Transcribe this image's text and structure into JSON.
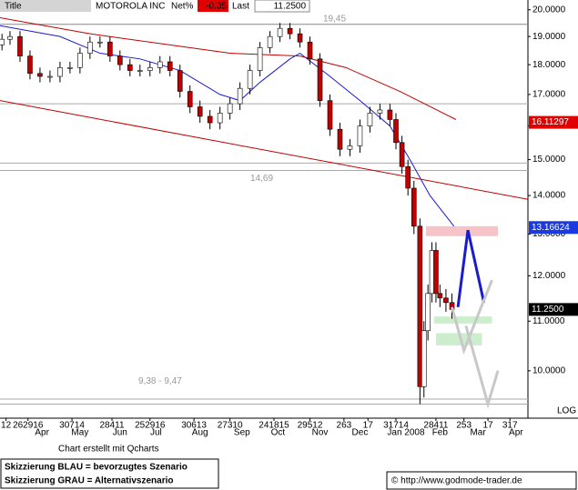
{
  "header": {
    "title": "Title",
    "symbol": "MOTOROLA INC",
    "net_label": "Net%",
    "net_value": "-0.35",
    "last_label": "Last",
    "last_value": "11.2500"
  },
  "chart_data": {
    "type": "candlestick",
    "x": [
      1,
      5,
      10,
      15,
      20,
      25,
      30,
      35,
      40,
      45,
      50,
      55,
      60,
      65,
      70,
      75,
      80,
      85,
      90,
      95,
      100,
      105,
      110,
      115,
      120,
      125,
      130,
      135,
      140,
      145,
      150,
      155,
      160,
      165,
      170,
      175,
      180,
      185,
      190,
      195,
      198,
      201,
      204,
      207,
      210,
      212,
      214,
      216,
      218,
      220,
      223,
      226
    ],
    "open": [
      18.7,
      18.9,
      19.0,
      18.3,
      17.7,
      17.6,
      17.6,
      17.9,
      17.9,
      18.4,
      18.8,
      18.8,
      18.3,
      18.0,
      17.8,
      17.8,
      17.9,
      18.1,
      17.8,
      17.1,
      16.6,
      16.3,
      16.1,
      16.4,
      16.7,
      17.2,
      17.8,
      18.6,
      19.0,
      19.3,
      19.1,
      18.8,
      18.2,
      16.8,
      15.9,
      15.3,
      15.4,
      16.0,
      16.4,
      16.5,
      16.2,
      15.5,
      14.8,
      14.2,
      13.2,
      9.7,
      10.8,
      11.6,
      12.6,
      11.6,
      11.5,
      11.4
    ],
    "high": [
      19.1,
      19.2,
      19.2,
      18.5,
      17.9,
      17.8,
      18.1,
      18.1,
      18.6,
      19.0,
      19.0,
      19.0,
      18.5,
      18.2,
      18.0,
      18.1,
      18.3,
      18.3,
      18.0,
      17.3,
      16.8,
      16.5,
      16.6,
      16.9,
      17.4,
      18.0,
      18.8,
      19.2,
      19.5,
      19.5,
      19.3,
      19.0,
      18.4,
      17.0,
      16.1,
      15.6,
      16.2,
      16.6,
      16.7,
      16.7,
      16.4,
      15.7,
      15.0,
      14.4,
      13.4,
      11.0,
      11.8,
      12.8,
      12.8,
      11.8,
      11.7,
      11.6
    ],
    "low": [
      18.5,
      18.7,
      18.1,
      17.5,
      17.4,
      17.4,
      17.4,
      17.7,
      17.7,
      18.2,
      18.6,
      18.1,
      17.8,
      17.6,
      17.6,
      17.6,
      17.7,
      17.6,
      16.9,
      16.4,
      16.1,
      15.9,
      15.9,
      16.2,
      16.5,
      17.0,
      17.6,
      18.4,
      18.8,
      18.9,
      18.6,
      18.0,
      16.6,
      15.7,
      15.1,
      15.1,
      15.2,
      15.8,
      16.2,
      16.0,
      15.3,
      14.6,
      14.0,
      13.0,
      9.38,
      9.5,
      10.6,
      11.4,
      11.4,
      11.3,
      11.2,
      11.05
    ],
    "close": [
      18.9,
      19.0,
      18.3,
      17.7,
      17.6,
      17.6,
      17.9,
      17.9,
      18.4,
      18.8,
      18.8,
      18.3,
      18.0,
      17.8,
      17.8,
      17.9,
      18.1,
      17.8,
      17.1,
      16.6,
      16.3,
      16.1,
      16.4,
      16.7,
      17.2,
      17.8,
      18.6,
      19.0,
      19.3,
      19.1,
      18.8,
      18.2,
      16.8,
      15.9,
      15.3,
      15.4,
      16.0,
      16.4,
      16.5,
      16.2,
      15.5,
      14.8,
      14.2,
      13.2,
      9.7,
      10.8,
      11.6,
      12.6,
      11.6,
      11.5,
      11.4,
      11.25
    ],
    "up_color": "#ffffff",
    "down_color": "#c00000",
    "lines": [
      {
        "color": "#1a1ad0",
        "x": [
          0,
          30,
          50,
          70,
          90,
          110,
          120,
          130,
          145,
          150,
          165,
          180,
          195,
          205,
          215,
          227
        ],
        "values": [
          19.4,
          19.0,
          18.4,
          18.2,
          17.8,
          17.0,
          16.8,
          17.4,
          18.2,
          18.4,
          17.6,
          16.8,
          16.0,
          15.0,
          14.0,
          13.2
        ]
      },
      {
        "color": "#c00000",
        "x": [
          0,
          45,
          115,
          150,
          173,
          200,
          228
        ],
        "values": [
          19.7,
          19.1,
          18.4,
          18.3,
          17.9,
          17.1,
          16.2
        ]
      },
      {
        "color": "#c00000",
        "x": [
          0,
          264
        ],
        "values": [
          16.8,
          13.9
        ]
      }
    ],
    "levels": [
      {
        "value": 19.45,
        "label": "19,45"
      },
      {
        "value": 14.69,
        "label": "14,69"
      },
      {
        "values": [
          9.38,
          9.47
        ],
        "label": "9,38 - 9,47"
      },
      {
        "value": 16.7
      },
      {
        "value": 14.9
      }
    ],
    "zones": [
      {
        "color": "#f6c4c8",
        "x": [
          213,
          249
        ],
        "range": [
          12.95,
          13.2
        ]
      },
      {
        "color": "#cdeecd",
        "x": [
          217,
          246
        ],
        "range": [
          10.95,
          11.1
        ]
      },
      {
        "color": "#cdeecd",
        "x": [
          218,
          241
        ],
        "range": [
          10.5,
          10.75
        ]
      }
    ],
    "scenarios": [
      {
        "color": "#1a1ad0",
        "x": [
          229,
          234,
          242
        ],
        "values": [
          11.3,
          13.1,
          11.4
        ]
      },
      {
        "color": "#c8c8c8",
        "x": [
          226,
          232,
          246
        ],
        "values": [
          11.3,
          10.4,
          11.9
        ]
      },
      {
        "color": "#c8c8c8",
        "x": [
          233,
          244,
          249
        ],
        "values": [
          10.9,
          9.38,
          10.0
        ]
      }
    ],
    "price_tags": [
      {
        "value": 16.11297,
        "color": "#e00000"
      },
      {
        "value": 13.16624,
        "color": "#1a3ae0"
      },
      {
        "value": {
          "value": 11.25,
          "label": "11.2500"
        },
        "color": "#000000"
      }
    ],
    "xlim": [
      0,
      264
    ],
    "ylim": [
      9.13,
      20.38
    ],
    "log_scale": true,
    "scale_label": "LOG",
    "yticks": [
      {
        "value": 10,
        "label": "10.0000"
      },
      {
        "value": 11,
        "label": "11.0000"
      },
      {
        "value": 12,
        "label": "12.0000"
      },
      {
        "value": 13,
        "label": "13.0000"
      },
      {
        "value": 14,
        "label": "14.0000"
      },
      {
        "value": 15,
        "label": "15.0000"
      },
      {
        "value": 16,
        "label": "16.0000"
      },
      {
        "value": 17,
        "label": "17.0000"
      },
      {
        "value": 18,
        "label": "18.0000"
      },
      {
        "value": 19,
        "label": "19.0000"
      },
      {
        "value": 20,
        "label": "20.0000"
      }
    ],
    "xticks": [
      {
        "value": 3,
        "label": "12"
      },
      {
        "value": 14,
        "label": "262916"
      },
      {
        "value": 36,
        "label": "30714"
      },
      {
        "value": 56,
        "label": "28411"
      },
      {
        "value": 75,
        "label": "252916"
      },
      {
        "value": 97,
        "label": "30613"
      },
      {
        "value": 115,
        "label": "27310"
      },
      {
        "value": 137,
        "label": "241815"
      },
      {
        "value": 155,
        "label": "29512"
      },
      {
        "value": 172,
        "label": "263"
      },
      {
        "value": 184,
        "label": "17"
      },
      {
        "value": 198,
        "label": "31714"
      },
      {
        "value": 218,
        "label": "28411"
      },
      {
        "value": 232,
        "label": "253"
      },
      {
        "value": 244,
        "label": "17"
      },
      {
        "value": 255,
        "label": "317"
      }
    ],
    "month_ticks": [
      {
        "value": 21,
        "label": "Apr"
      },
      {
        "value": 40,
        "label": "May"
      },
      {
        "value": 60,
        "label": "Jun"
      },
      {
        "value": 78,
        "label": "Jul"
      },
      {
        "value": 100,
        "label": "Aug"
      },
      {
        "value": 121,
        "label": "Sep"
      },
      {
        "value": 139,
        "label": "Oct"
      },
      {
        "value": 160,
        "label": "Nov"
      },
      {
        "value": 180,
        "label": "Dec"
      },
      {
        "value": 203,
        "label": "Jan 2008"
      },
      {
        "value": 220,
        "label": "Feb"
      },
      {
        "value": 239,
        "label": "Mar"
      },
      {
        "value": 258,
        "label": "Apr"
      }
    ]
  },
  "footer": {
    "credit": "Chart erstellt mit Qcharts",
    "legend_blue": "Skizzierung BLAU = bevorzugtes Szenario",
    "legend_grey": "Skizzierung GRAU = Alternativszenario",
    "copyright": "© http://www.godmode-trader.de"
  }
}
